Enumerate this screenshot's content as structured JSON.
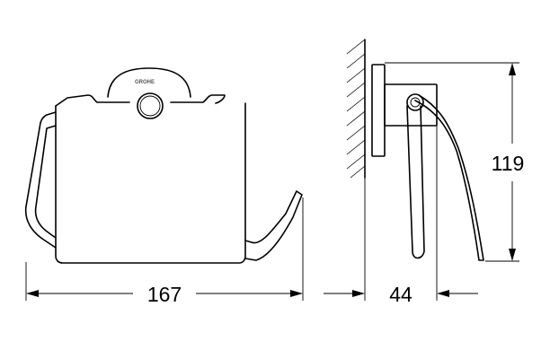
{
  "brand_logo": "GROHE",
  "dimensions": {
    "width": "167",
    "depth": "44",
    "height": "119"
  }
}
